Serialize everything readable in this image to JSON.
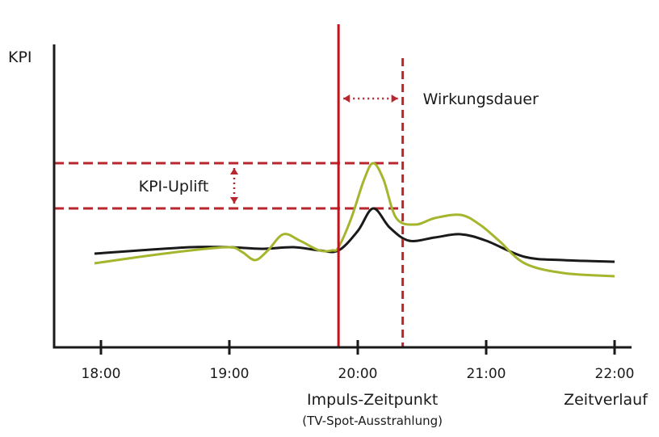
{
  "chart_data": {
    "type": "line",
    "title": "",
    "ylabel": "KPI",
    "xlabel": "Zeitverlauf",
    "x_ticks": [
      "18:00",
      "19:00",
      "20:00",
      "21:00",
      "22:00"
    ],
    "xlim": [
      17.64,
      22.15
    ],
    "ylim": [
      0,
      100
    ],
    "grid": false,
    "series": [
      {
        "color": "#1a1a1a",
        "x": [
          17.95,
          18.3,
          18.7,
          19.0,
          19.25,
          19.5,
          19.7,
          19.85,
          20.0,
          20.12,
          20.25,
          20.4,
          20.6,
          20.8,
          21.0,
          21.3,
          21.6,
          22.0
        ],
        "y": [
          29,
          30,
          31,
          31,
          30.5,
          31,
          30,
          30,
          36,
          43,
          37,
          33,
          34,
          35,
          33,
          28,
          27,
          26.5
        ]
      },
      {
        "color": "#a6b52e",
        "x": [
          17.95,
          18.3,
          18.7,
          19.0,
          19.1,
          19.2,
          19.3,
          19.42,
          19.55,
          19.7,
          19.8,
          19.85,
          19.95,
          20.05,
          20.12,
          20.2,
          20.3,
          20.45,
          20.6,
          20.8,
          20.95,
          21.1,
          21.3,
          21.6,
          22.0
        ],
        "y": [
          26,
          28,
          30,
          31,
          29.5,
          27,
          30,
          35,
          33,
          30,
          30,
          31,
          40,
          52,
          57,
          52,
          40,
          38,
          40,
          41,
          38,
          33,
          26,
          23,
          22
        ]
      }
    ],
    "annotations": {
      "impulse_label": "Impuls-Zeitpunkt",
      "impulse_sublabel": "(TV-Spot-Ausstrahlung)",
      "impulse_time": 19.85,
      "effect_end_time": 20.35,
      "duration_label": "Wirkungsdauer",
      "uplift_label": "KPI-Uplift",
      "uplift_high": 57,
      "uplift_low": 43
    },
    "colors": {
      "axis": "#1a1a1a",
      "impulse": "#c0141c",
      "dashed": "#b8262e",
      "baseline": "#1a1a1a",
      "actual": "#a6b52e"
    }
  }
}
